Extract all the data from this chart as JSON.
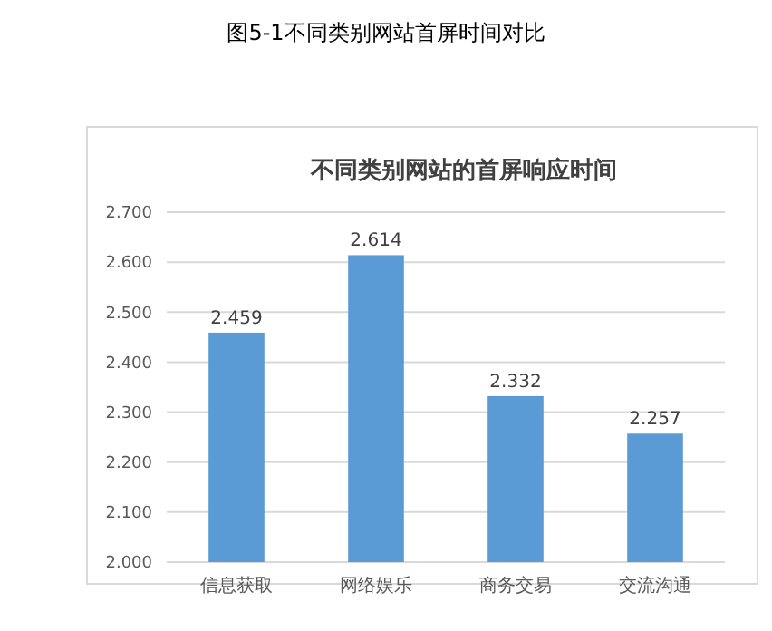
{
  "chart_data": {
    "type": "bar",
    "title": "不同类别网站的首屏响应时间",
    "annotations": [
      "图5-1不同类别网站首屏时间对比"
    ],
    "categories": [
      "信息获取",
      "网络娱乐",
      "商务交易",
      "交流沟通"
    ],
    "values": [
      2.459,
      2.614,
      2.332,
      2.257
    ],
    "color": "#5b9bd5",
    "ylim": [
      2.0,
      2.7
    ],
    "yticks": [
      {
        "value": 2.0,
        "label": "2.000"
      },
      {
        "value": 2.1,
        "label": "2.100"
      },
      {
        "value": 2.2,
        "label": "2.200"
      },
      {
        "value": 2.3,
        "label": "2.300"
      },
      {
        "value": 2.4,
        "label": "2.400"
      },
      {
        "value": 2.5,
        "label": "2.500"
      },
      {
        "value": 2.6,
        "label": "2.600"
      },
      {
        "value": 2.7,
        "label": "2.700"
      }
    ],
    "grid": "y",
    "data_labels": true
  }
}
